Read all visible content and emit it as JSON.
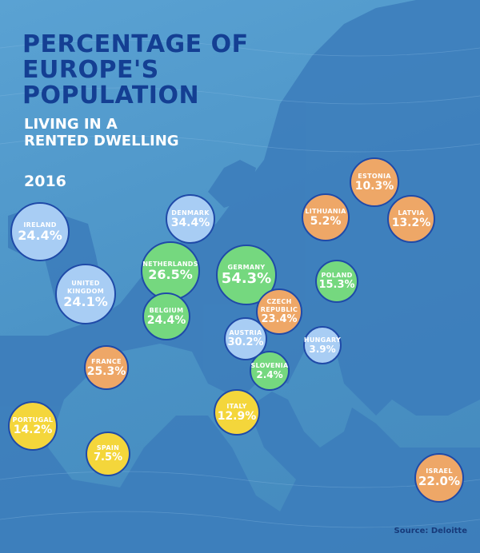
{
  "title": "PERCENTAGE OF EUROPE'S POPULATION",
  "subtitle": "LIVING IN A RENTED DWELLING",
  "year": "2016",
  "source": "Source: Deloitte",
  "colors": {
    "background": "#4b93c6",
    "land": "#3c7cbb",
    "title": "#143f93",
    "bubble_border": "#1f4aa8",
    "blue": "#a8cdf4",
    "green": "#75d87f",
    "orange": "#eea767",
    "yellow": "#f4d63b"
  },
  "chart_data": {
    "type": "bubble-map",
    "title": "PERCENTAGE OF EUROPE'S POPULATION",
    "subtitle": "LIVING IN A RENTED DWELLING",
    "year": "2016",
    "unit": "%",
    "points": [
      {
        "country": "Ireland",
        "label": "IRELAND",
        "value": 24.4,
        "display": "24.4%",
        "color": "blue"
      },
      {
        "country": "Denmark",
        "label": "DENMARK",
        "value": 34.4,
        "display": "34.4%",
        "color": "blue"
      },
      {
        "country": "Netherlands",
        "label": "NETHERLANDS",
        "value": 26.5,
        "display": "26.5%",
        "color": "green"
      },
      {
        "country": "Germany",
        "label": "GERMANY",
        "value": 54.3,
        "display": "54.3%",
        "color": "green"
      },
      {
        "country": "United Kingdom",
        "label": "UNITED\nKINGDOM",
        "value": 24.1,
        "display": "24.1%",
        "color": "blue"
      },
      {
        "country": "Belgium",
        "label": "BELGIUM",
        "value": 24.4,
        "display": "24.4%",
        "color": "green"
      },
      {
        "country": "Czech Republic",
        "label": "CZECH\nREPUBLIC",
        "value": 23.4,
        "display": "23.4%",
        "color": "orange"
      },
      {
        "country": "Austria",
        "label": "AUSTRIA",
        "value": 30.2,
        "display": "30.2%",
        "color": "blue"
      },
      {
        "country": "France",
        "label": "FRANCE",
        "value": 25.3,
        "display": "25.3%",
        "color": "orange"
      },
      {
        "country": "Slovenia",
        "label": "SLOVENIA",
        "value": 2.4,
        "display": "2.4%",
        "color": "green"
      },
      {
        "country": "Hungary",
        "label": "HUNGARY",
        "value": 3.9,
        "display": "3.9%",
        "color": "blue"
      },
      {
        "country": "Poland",
        "label": "POLAND",
        "value": 15.3,
        "display": "15.3%",
        "color": "green"
      },
      {
        "country": "Estonia",
        "label": "ESTONIA",
        "value": 10.3,
        "display": "10.3%",
        "color": "orange"
      },
      {
        "country": "Lithuania",
        "label": "LITHUANIA",
        "value": 5.2,
        "display": "5.2%",
        "color": "orange"
      },
      {
        "country": "Latvia",
        "label": "LATVIA",
        "value": 13.2,
        "display": "13.2%",
        "color": "orange"
      },
      {
        "country": "Italy",
        "label": "ITALY",
        "value": 12.9,
        "display": "12.9%",
        "color": "yellow"
      },
      {
        "country": "Portugal",
        "label": "PORTUGAL",
        "value": 14.2,
        "display": "14.2%",
        "color": "yellow"
      },
      {
        "country": "Spain",
        "label": "SPAIN",
        "value": 7.5,
        "display": "7.5%",
        "color": "yellow"
      },
      {
        "country": "Israel",
        "label": "ISRAEL",
        "value": 22.0,
        "display": "22.0%",
        "color": "orange"
      }
    ]
  }
}
